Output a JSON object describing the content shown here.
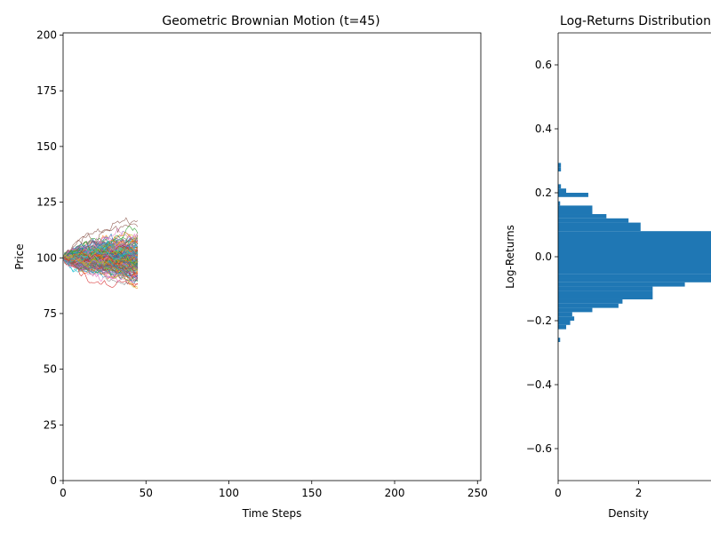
{
  "chart_data": [
    {
      "type": "line",
      "title": "Geometric Brownian Motion (t=45)",
      "xlabel": "Time Steps",
      "ylabel": "Price",
      "xlim": [
        0,
        252
      ],
      "ylim": [
        0,
        201
      ],
      "xticks": [
        "0",
        "50",
        "100",
        "150",
        "200",
        "250"
      ],
      "yticks": [
        "0",
        "25",
        "50",
        "75",
        "100",
        "125",
        "150",
        "175",
        "200"
      ],
      "grid": false,
      "series_description": "Many simulated price paths starting at 100 over time steps 0-45",
      "num_paths": 200,
      "start_value": 100,
      "t_max": 45,
      "final_range": [
        76,
        134
      ],
      "colors": [
        "#1f77b4",
        "#ff7f0e",
        "#2ca02c",
        "#d62728",
        "#9467bd",
        "#8c564b",
        "#e377c2",
        "#7f7f7f",
        "#bcbd22",
        "#17becf"
      ]
    },
    {
      "type": "bar",
      "orientation": "horizontal",
      "title": "Log-Returns Distribution",
      "xlabel": "Density",
      "ylabel": "Log-Returns",
      "xlim": [
        0,
        3.8
      ],
      "ylim": [
        -0.7,
        0.7
      ],
      "xticks": [
        "0",
        "2"
      ],
      "yticks": [
        "−0.6",
        "−0.4",
        "−0.2",
        "0.0",
        "0.2",
        "0.4",
        "0.6"
      ],
      "color": "#1f77b4",
      "bins": [
        {
          "y0": -0.2667,
          "y1": -0.2533,
          "density": 0.05
        },
        {
          "y0": -0.2267,
          "y1": -0.2133,
          "density": 0.2
        },
        {
          "y0": -0.2133,
          "y1": -0.2,
          "density": 0.3
        },
        {
          "y0": -0.2,
          "y1": -0.1867,
          "density": 0.4
        },
        {
          "y0": -0.1867,
          "y1": -0.1733,
          "density": 0.35
        },
        {
          "y0": -0.1733,
          "y1": -0.16,
          "density": 0.85
        },
        {
          "y0": -0.16,
          "y1": -0.1467,
          "density": 1.5
        },
        {
          "y0": -0.1467,
          "y1": -0.1333,
          "density": 1.6
        },
        {
          "y0": -0.1333,
          "y1": -0.1067,
          "density": 2.35
        },
        {
          "y0": -0.1067,
          "y1": -0.0933,
          "density": 2.35
        },
        {
          "y0": -0.0933,
          "y1": -0.08,
          "density": 3.15
        },
        {
          "y0": -0.08,
          "y1": -0.0667,
          "density": 3.8
        },
        {
          "y0": -0.0667,
          "y1": -0.0533,
          "density": 3.8
        },
        {
          "y0": -0.0533,
          "y1": 0.08,
          "density": 3.8
        },
        {
          "y0": 0.08,
          "y1": 0.1067,
          "density": 2.05
        },
        {
          "y0": 0.1067,
          "y1": 0.12,
          "density": 1.75
        },
        {
          "y0": 0.12,
          "y1": 0.1333,
          "density": 1.2
        },
        {
          "y0": 0.1333,
          "y1": 0.16,
          "density": 0.85
        },
        {
          "y0": 0.16,
          "y1": 0.1733,
          "density": 0.05
        },
        {
          "y0": 0.1867,
          "y1": 0.2,
          "density": 0.75
        },
        {
          "y0": 0.2,
          "y1": 0.2133,
          "density": 0.2
        },
        {
          "y0": 0.2133,
          "y1": 0.2267,
          "density": 0.07
        },
        {
          "y0": 0.2667,
          "y1": 0.28,
          "density": 0.07
        },
        {
          "y0": 0.28,
          "y1": 0.2933,
          "density": 0.07
        }
      ]
    }
  ]
}
